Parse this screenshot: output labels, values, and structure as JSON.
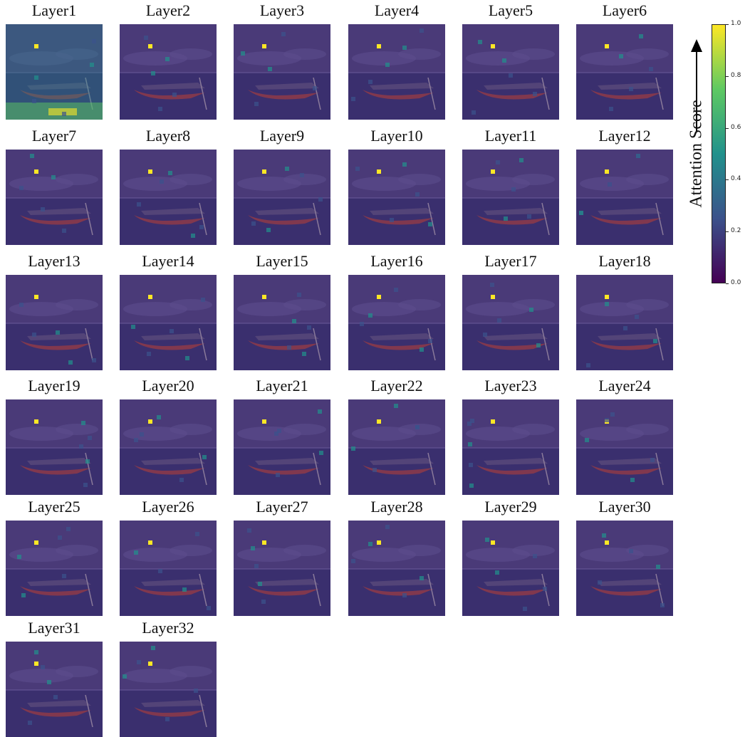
{
  "chart_data": {
    "type": "heatmap",
    "description_grid": "attention heatmaps overlaid on a photo of a boat on water at dusk",
    "panels": [
      {
        "title": "Layer1"
      },
      {
        "title": "Layer2"
      },
      {
        "title": "Layer3"
      },
      {
        "title": "Layer4"
      },
      {
        "title": "Layer5"
      },
      {
        "title": "Layer6"
      },
      {
        "title": "Layer7"
      },
      {
        "title": "Layer8"
      },
      {
        "title": "Layer9"
      },
      {
        "title": "Layer10"
      },
      {
        "title": "Layer11"
      },
      {
        "title": "Layer12"
      },
      {
        "title": "Layer13"
      },
      {
        "title": "Layer14"
      },
      {
        "title": "Layer15"
      },
      {
        "title": "Layer16"
      },
      {
        "title": "Layer17"
      },
      {
        "title": "Layer18"
      },
      {
        "title": "Layer19"
      },
      {
        "title": "Layer20"
      },
      {
        "title": "Layer21"
      },
      {
        "title": "Layer22"
      },
      {
        "title": "Layer23"
      },
      {
        "title": "Layer24"
      },
      {
        "title": "Layer25"
      },
      {
        "title": "Layer26"
      },
      {
        "title": "Layer27"
      },
      {
        "title": "Layer28"
      },
      {
        "title": "Layer29"
      },
      {
        "title": "Layer30"
      },
      {
        "title": "Layer31"
      },
      {
        "title": "Layer32"
      }
    ],
    "colorbar": {
      "label": "Attention Score",
      "colormap": "viridis",
      "range": [
        0.0,
        1.0
      ],
      "ticks": [
        "0.0",
        "0.2",
        "0.4",
        "0.6",
        "0.8",
        "1.0"
      ],
      "tick_values": [
        0.0,
        0.2,
        0.4,
        0.6,
        0.8,
        1.0
      ]
    },
    "colors": {
      "low": "#440154",
      "mid_low": "#3b528b",
      "mid": "#21918c",
      "mid_high": "#5ec962",
      "high": "#fde725",
      "sky_overlay": "#4a3a78",
      "water_overlay": "#3a2f6e",
      "boat_hull": "#8a3a4a"
    }
  }
}
